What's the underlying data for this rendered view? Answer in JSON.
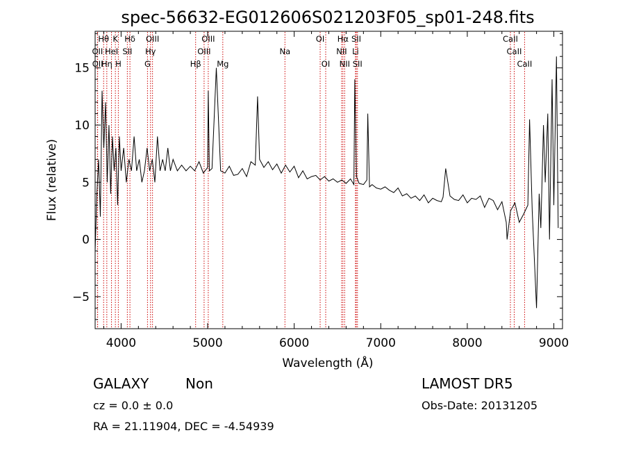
{
  "chart_data": {
    "type": "line",
    "title": "spec-56632-EG012606S021203F05_sp01-248.fits",
    "xlabel": "Wavelength (Å)",
    "ylabel": "Flux (relative)",
    "xlim": [
      3700,
      9100
    ],
    "ylim": [
      -7.8,
      18.2
    ],
    "xticks": [
      4000,
      5000,
      6000,
      7000,
      8000,
      9000
    ],
    "yticks": [
      -5,
      0,
      5,
      10,
      15
    ],
    "grid": false,
    "line_color": "#000000",
    "marker_color": "#cc0000",
    "spectrum": {
      "x": [
        3700,
        3720,
        3740,
        3760,
        3780,
        3800,
        3820,
        3840,
        3860,
        3880,
        3900,
        3920,
        3940,
        3960,
        3980,
        4000,
        4030,
        4060,
        4090,
        4120,
        4150,
        4180,
        4210,
        4240,
        4270,
        4300,
        4330,
        4360,
        4390,
        4420,
        4450,
        4480,
        4510,
        4540,
        4570,
        4600,
        4650,
        4700,
        4750,
        4800,
        4850,
        4900,
        4950,
        5000,
        5007,
        5020,
        5050,
        5100,
        5150,
        5200,
        5250,
        5300,
        5350,
        5400,
        5450,
        5500,
        5550,
        5577,
        5600,
        5650,
        5700,
        5750,
        5800,
        5850,
        5900,
        5950,
        6000,
        6050,
        6100,
        6150,
        6200,
        6250,
        6300,
        6350,
        6400,
        6450,
        6500,
        6550,
        6600,
        6650,
        6690,
        6700,
        6720,
        6750,
        6800,
        6840,
        6850,
        6870,
        6900,
        6950,
        7000,
        7050,
        7100,
        7150,
        7200,
        7250,
        7300,
        7350,
        7400,
        7450,
        7500,
        7550,
        7600,
        7650,
        7700,
        7720,
        7750,
        7800,
        7850,
        7900,
        7950,
        8000,
        8050,
        8100,
        8150,
        8200,
        8250,
        8300,
        8350,
        8400,
        8450,
        8460,
        8500,
        8550,
        8600,
        8650,
        8700,
        8720,
        8750,
        8800,
        8830,
        8850,
        8880,
        8900,
        8930,
        8950,
        8980,
        9000,
        9030,
        9050
      ],
      "y": [
        -1,
        4,
        7,
        2,
        13,
        8,
        12,
        5,
        10,
        4,
        9,
        6,
        8,
        3,
        9,
        6,
        8,
        5,
        7,
        6,
        9,
        6,
        7,
        5,
        6,
        8,
        6,
        7,
        5,
        9,
        6,
        7,
        6,
        8,
        6,
        7,
        6,
        6.5,
        6,
        6.4,
        6,
        6.8,
        5.8,
        6.3,
        13,
        6,
        6.2,
        15,
        6,
        5.8,
        6.4,
        5.6,
        5.7,
        6.2,
        5.5,
        6.8,
        6.5,
        12.5,
        7,
        6.3,
        6.8,
        6.1,
        6.6,
        5.8,
        6.5,
        5.9,
        6.4,
        5.4,
        6.0,
        5.3,
        5.5,
        5.6,
        5.2,
        5.5,
        5.1,
        5.3,
        5.0,
        5.2,
        4.9,
        5.3,
        4.8,
        14,
        5.5,
        4.9,
        4.8,
        5.2,
        11,
        4.6,
        4.8,
        4.5,
        4.4,
        4.6,
        4.3,
        4.1,
        4.5,
        3.8,
        4.0,
        3.6,
        3.8,
        3.4,
        3.9,
        3.2,
        3.6,
        3.4,
        3.3,
        3.7,
        6.2,
        3.8,
        3.5,
        3.4,
        3.9,
        3.2,
        3.6,
        3.5,
        3.8,
        2.8,
        3.6,
        3.4,
        2.6,
        3.3,
        1.5,
        0,
        2.5,
        3.2,
        1.5,
        2.2,
        3,
        10.5,
        2.5,
        -6,
        4,
        1,
        10,
        5,
        11,
        0,
        14,
        3,
        16,
        1
      ]
    },
    "lines": [
      {
        "label": "OII",
        "x": 3727,
        "row": 1
      },
      {
        "label": "OII",
        "x": 3729,
        "row": 2
      },
      {
        "label": "Hθ",
        "x": 3798,
        "row": 0
      },
      {
        "label": "Hη",
        "x": 3835,
        "row": 2
      },
      {
        "label": "HeI",
        "x": 3889,
        "row": 1
      },
      {
        "label": "K",
        "x": 3934,
        "row": 0
      },
      {
        "label": "H",
        "x": 3968,
        "row": 2
      },
      {
        "label": "Hδ",
        "x": 4102,
        "row": 0
      },
      {
        "label": "SII",
        "x": 4072,
        "row": 1
      },
      {
        "label": "Hγ",
        "x": 4340,
        "row": 1
      },
      {
        "label": "G",
        "x": 4305,
        "row": 2
      },
      {
        "label": "OIII",
        "x": 4363,
        "row": 0
      },
      {
        "label": "Hβ",
        "x": 4861,
        "row": 2
      },
      {
        "label": "OIII",
        "x": 4959,
        "row": 1
      },
      {
        "label": "OIII",
        "x": 5007,
        "row": 0
      },
      {
        "label": "Mg",
        "x": 5175,
        "row": 2
      },
      {
        "label": "Na",
        "x": 5893,
        "row": 1
      },
      {
        "label": "OI",
        "x": 6300,
        "row": 0
      },
      {
        "label": "OI",
        "x": 6364,
        "row": 2
      },
      {
        "label": "Hα",
        "x": 6563,
        "row": 0
      },
      {
        "label": "NII",
        "x": 6548,
        "row": 1
      },
      {
        "label": "NII",
        "x": 6583,
        "row": 2
      },
      {
        "label": "SII",
        "x": 6717,
        "row": 0
      },
      {
        "label": "Li",
        "x": 6708,
        "row": 1
      },
      {
        "label": "SII",
        "x": 6731,
        "row": 2
      },
      {
        "label": "CaII",
        "x": 8498,
        "row": 0
      },
      {
        "label": "CaII",
        "x": 8542,
        "row": 1
      },
      {
        "label": "CaII",
        "x": 8662,
        "row": 2
      }
    ]
  },
  "info": {
    "class_label": "GALAXY",
    "subclass": "Non",
    "cz": "cz = 0.0 ± 0.0",
    "coords": "RA =  21.11904, DEC =  -4.54939",
    "survey": "LAMOST DR5",
    "obs_date": "Obs-Date: 20131205"
  }
}
